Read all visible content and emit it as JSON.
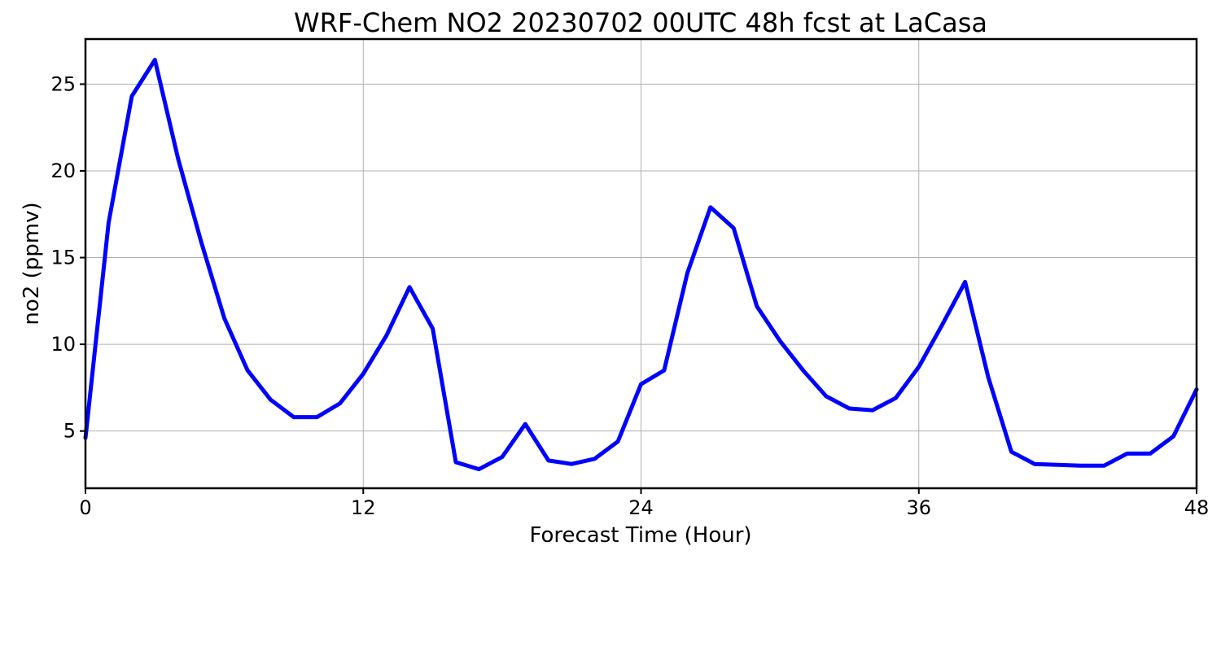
{
  "chart_data": {
    "type": "line",
    "title": "WRF-Chem NO2  20230702 00UTC 48h fcst at LaCasa",
    "xlabel": "Forecast Time (Hour)",
    "ylabel": "no2  (ppmv)",
    "xlim": [
      0,
      48
    ],
    "ylim": [
      1.7,
      27.6
    ],
    "xticks": [
      0,
      12,
      24,
      36,
      48
    ],
    "yticks": [
      5,
      10,
      15,
      20,
      25
    ],
    "grid": true,
    "line_color": "#0000ff",
    "series": [
      {
        "x": [
          0,
          1,
          2,
          3,
          4,
          5,
          6,
          7,
          8,
          9,
          10,
          11,
          12,
          13,
          14,
          15,
          16,
          17,
          18,
          19,
          20,
          21,
          22,
          23,
          24,
          25,
          26,
          27,
          28,
          29,
          30,
          31,
          32,
          33,
          34,
          35,
          36,
          37,
          38,
          39,
          40,
          41,
          42,
          43,
          44,
          45,
          46,
          47,
          48
        ],
        "values": [
          4.6,
          17.0,
          24.3,
          26.4,
          20.7,
          15.9,
          11.5,
          8.5,
          6.8,
          5.8,
          5.8,
          6.6,
          8.3,
          10.5,
          13.3,
          10.9,
          3.2,
          2.8,
          3.5,
          5.4,
          3.3,
          3.1,
          3.4,
          4.4,
          7.7,
          8.5,
          14.1,
          17.9,
          16.7,
          12.2,
          10.2,
          8.5,
          7.0,
          6.3,
          6.2,
          6.9,
          8.7,
          11.1,
          13.6,
          8.1,
          3.8,
          3.1,
          3.05,
          3.0,
          3.0,
          3.7,
          3.7,
          4.7,
          7.4
        ]
      }
    ]
  }
}
